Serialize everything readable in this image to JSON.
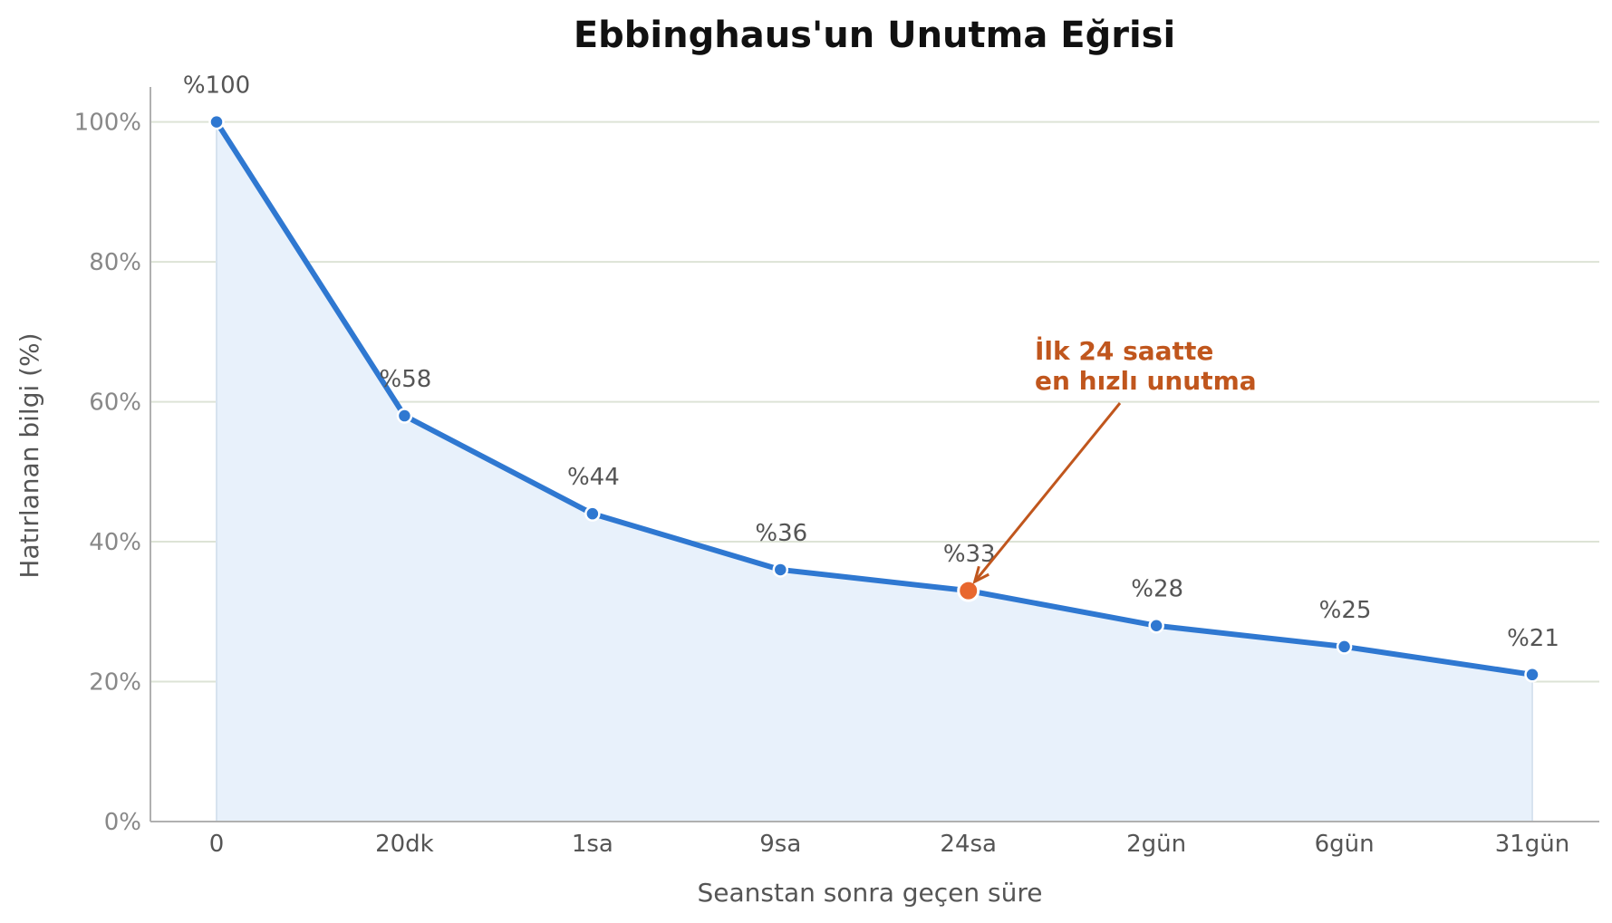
{
  "chart_data": {
    "type": "line",
    "title": "Ebbinghaus'un Unutma Eğrisi",
    "xlabel": "Seanstan sonra geçen süre",
    "ylabel": "Hatırlanan bilgi (%)",
    "categories": [
      "0",
      "20dk",
      "1sa",
      "9sa",
      "24sa",
      "2gün",
      "6gün",
      "31gün"
    ],
    "values": [
      100,
      58,
      44,
      36,
      33,
      28,
      25,
      21
    ],
    "data_labels": [
      "%100",
      "%58",
      "%44",
      "%36",
      "%33",
      "%28",
      "%25",
      "%21"
    ],
    "ylim": [
      0,
      105
    ],
    "yticks": [
      0,
      20,
      40,
      60,
      80,
      100
    ],
    "ytick_labels": [
      "0%",
      "20%",
      "40%",
      "60%",
      "80%",
      "100%"
    ],
    "grid": "horizontal",
    "area_fill": true,
    "highlight_index": 4,
    "annotation": {
      "lines": [
        "İlk 24 saatte",
        "en hızlı unutma"
      ],
      "target_index": 4
    },
    "colors": {
      "line": "#2f78d1",
      "fill": "#e8f1fb",
      "highlight": "#e8672e",
      "annotation": "#c0561d",
      "grid": "#dde3d6",
      "axis": "#b0b0b0"
    }
  }
}
